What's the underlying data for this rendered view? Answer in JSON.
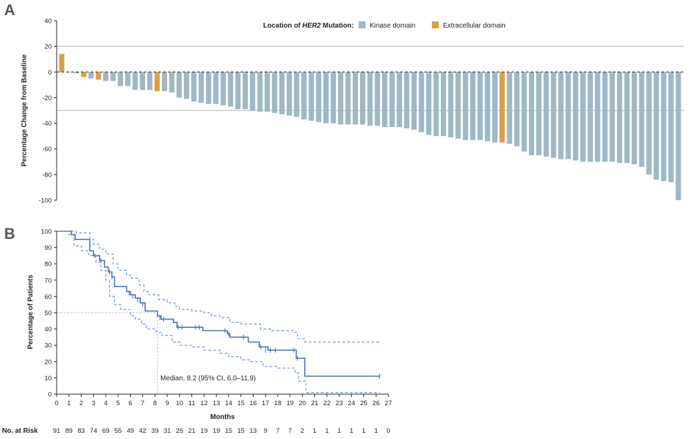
{
  "panels": {
    "a": {
      "letter": "A"
    },
    "b": {
      "letter": "B"
    }
  },
  "colors": {
    "kinase": "#9fb8c4",
    "extracellular": "#d9a147",
    "km_line": "#4a6fb5",
    "ci_line": "#6f8fe0",
    "ref_line": "#999999",
    "axis": "#222222"
  },
  "chart_data": [
    {
      "type": "bar",
      "ylabel": "Percentage Change from Baseline",
      "xlabel": "",
      "ylim": [
        -100,
        40
      ],
      "yticks": [
        40,
        20,
        0,
        -20,
        -40,
        -60,
        -80,
        -100
      ],
      "reference_lines": [
        20,
        -30
      ],
      "legend": {
        "title_prefix": "Location of ",
        "title_gene": "HER2",
        "title_suffix": " Mutation:",
        "placement": "top",
        "entries": [
          {
            "key": "kinase",
            "label": "Kinase domain"
          },
          {
            "key": "extracellular",
            "label": "Extracellular domain"
          }
        ]
      },
      "values": [
        14,
        0,
        -1,
        -4,
        -5,
        -6,
        -7,
        -7,
        -11,
        -11,
        -14,
        -14,
        -14,
        -15,
        -15,
        -16,
        -20,
        -21,
        -23,
        -24,
        -25,
        -25,
        -26,
        -27,
        -29,
        -29,
        -30,
        -31,
        -31,
        -32,
        -33,
        -34,
        -35,
        -37,
        -38,
        -39,
        -40,
        -40,
        -41,
        -41,
        -41,
        -41,
        -42,
        -42,
        -43,
        -43,
        -43,
        -44,
        -45,
        -47,
        -49,
        -50,
        -50,
        -51,
        -52,
        -53,
        -53,
        -53,
        -54,
        -55,
        -55,
        -56,
        -58,
        -62,
        -65,
        -65,
        -66,
        -67,
        -68,
        -68,
        -69,
        -70,
        -70,
        -70,
        -70,
        -70,
        -71,
        -71,
        -72,
        -74,
        -80,
        -84,
        -85,
        -86,
        -100
      ],
      "domains": [
        "e",
        "k",
        "k",
        "e",
        "k",
        "e",
        "k",
        "k",
        "k",
        "k",
        "k",
        "k",
        "k",
        "e",
        "k",
        "k",
        "k",
        "k",
        "k",
        "k",
        "k",
        "k",
        "k",
        "k",
        "k",
        "k",
        "k",
        "k",
        "k",
        "k",
        "k",
        "k",
        "k",
        "k",
        "k",
        "k",
        "k",
        "k",
        "k",
        "k",
        "k",
        "k",
        "k",
        "k",
        "k",
        "k",
        "k",
        "k",
        "k",
        "k",
        "k",
        "k",
        "k",
        "k",
        "k",
        "k",
        "k",
        "k",
        "k",
        "k",
        "e",
        "k",
        "k",
        "k",
        "k",
        "k",
        "k",
        "k",
        "k",
        "k",
        "k",
        "k",
        "k",
        "k",
        "k",
        "k",
        "k",
        "k",
        "k",
        "k",
        "k",
        "k",
        "k",
        "k",
        "k"
      ]
    },
    {
      "type": "line",
      "xlabel": "Months",
      "ylabel": "Percentage of Patients",
      "xlim": [
        0,
        27
      ],
      "ylim": [
        0,
        100
      ],
      "xticks": [
        0,
        1,
        2,
        3,
        4,
        5,
        6,
        7,
        8,
        9,
        10,
        11,
        12,
        13,
        14,
        15,
        16,
        17,
        18,
        19,
        20,
        21,
        22,
        23,
        24,
        25,
        26,
        27
      ],
      "yticks": [
        0,
        10,
        20,
        30,
        40,
        50,
        60,
        70,
        80,
        90,
        100
      ],
      "median_annotation": "Median, 8.2 (95% CI, 6.0–11.9)",
      "median": {
        "x": 8.2,
        "y": 50
      },
      "series": [
        {
          "role": "estimate",
          "steps": [
            [
              0,
              100
            ],
            [
              1,
              100
            ],
            [
              1.2,
              98
            ],
            [
              1.5,
              95
            ],
            [
              2.4,
              95
            ],
            [
              2.7,
              88
            ],
            [
              3.0,
              85
            ],
            [
              3.5,
              82
            ],
            [
              3.9,
              78
            ],
            [
              4.2,
              75
            ],
            [
              4.5,
              72
            ],
            [
              4.7,
              66
            ],
            [
              5.7,
              63
            ],
            [
              6.0,
              61
            ],
            [
              6.4,
              59
            ],
            [
              6.8,
              56
            ],
            [
              7.2,
              51
            ],
            [
              8.2,
              48
            ],
            [
              8.5,
              46
            ],
            [
              9.5,
              44
            ],
            [
              9.8,
              41
            ],
            [
              11.6,
              41
            ],
            [
              11.9,
              39
            ],
            [
              13.9,
              37
            ],
            [
              14.1,
              35
            ],
            [
              15.3,
              35
            ],
            [
              15.6,
              32
            ],
            [
              16.5,
              29
            ],
            [
              17.2,
              27
            ],
            [
              19.3,
              27
            ],
            [
              19.5,
              22
            ],
            [
              20.2,
              11
            ],
            [
              26.3,
              11
            ]
          ],
          "censors": [
            [
              1.2,
              99
            ],
            [
              3.1,
              85
            ],
            [
              3.6,
              82
            ],
            [
              4.3,
              75
            ],
            [
              4.5,
              72
            ],
            [
              5.9,
              62
            ],
            [
              6.2,
              60
            ],
            [
              6.6,
              58
            ],
            [
              7.0,
              55
            ],
            [
              8.4,
              47
            ],
            [
              8.7,
              46
            ],
            [
              9.9,
              41
            ],
            [
              10.2,
              41
            ],
            [
              11.3,
              41
            ],
            [
              11.6,
              41
            ],
            [
              13.7,
              39
            ],
            [
              14.0,
              37
            ],
            [
              15.2,
              35
            ],
            [
              16.6,
              29
            ],
            [
              17.0,
              27
            ],
            [
              17.4,
              27
            ],
            [
              17.8,
              27
            ],
            [
              19.3,
              27
            ],
            [
              19.6,
              22
            ],
            [
              26.3,
              11
            ]
          ]
        },
        {
          "role": "upper_ci",
          "steps": [
            [
              0,
              100
            ],
            [
              1.3,
              100
            ],
            [
              1.6,
              99
            ],
            [
              2.7,
              95
            ],
            [
              3.0,
              92
            ],
            [
              3.5,
              89
            ],
            [
              4.0,
              86
            ],
            [
              4.6,
              80
            ],
            [
              5.0,
              76
            ],
            [
              5.7,
              73
            ],
            [
              6.1,
              71
            ],
            [
              6.7,
              67
            ],
            [
              7.1,
              63
            ],
            [
              7.5,
              61
            ],
            [
              8.3,
              58
            ],
            [
              9.0,
              56
            ],
            [
              9.6,
              54
            ],
            [
              10.0,
              52
            ],
            [
              11.0,
              51
            ],
            [
              12.0,
              50
            ],
            [
              12.6,
              48
            ],
            [
              13.3,
              47
            ],
            [
              14.1,
              44
            ],
            [
              15.0,
              43
            ],
            [
              16.6,
              40
            ],
            [
              17.4,
              39
            ],
            [
              19.3,
              38
            ],
            [
              19.6,
              34
            ],
            [
              20.2,
              32
            ],
            [
              26.3,
              32
            ]
          ]
        },
        {
          "role": "lower_ci",
          "steps": [
            [
              0,
              100
            ],
            [
              1.0,
              98
            ],
            [
              1.4,
              91
            ],
            [
              2.0,
              88
            ],
            [
              2.6,
              85
            ],
            [
              3.2,
              81
            ],
            [
              3.6,
              76
            ],
            [
              4.0,
              70
            ],
            [
              4.3,
              60
            ],
            [
              4.7,
              55
            ],
            [
              5.2,
              52
            ],
            [
              6.0,
              48
            ],
            [
              6.4,
              46
            ],
            [
              6.9,
              43
            ],
            [
              7.3,
              40
            ],
            [
              8.1,
              38
            ],
            [
              8.6,
              36
            ],
            [
              9.4,
              32
            ],
            [
              10.0,
              30
            ],
            [
              11.0,
              29
            ],
            [
              12.0,
              27
            ],
            [
              13.3,
              25
            ],
            [
              14.0,
              23
            ],
            [
              15.0,
              21
            ],
            [
              15.7,
              20
            ],
            [
              16.8,
              17
            ],
            [
              18.0,
              16
            ],
            [
              19.4,
              13
            ],
            [
              19.7,
              8
            ],
            [
              20.3,
              1
            ],
            [
              26.3,
              1
            ]
          ]
        }
      ],
      "risk_table": {
        "label": "No. at Risk",
        "values": [
          91,
          89,
          83,
          74,
          69,
          55,
          49,
          42,
          39,
          31,
          25,
          21,
          19,
          19,
          15,
          15,
          13,
          9,
          7,
          7,
          2,
          1,
          1,
          1,
          1,
          1,
          1,
          0
        ]
      }
    }
  ]
}
